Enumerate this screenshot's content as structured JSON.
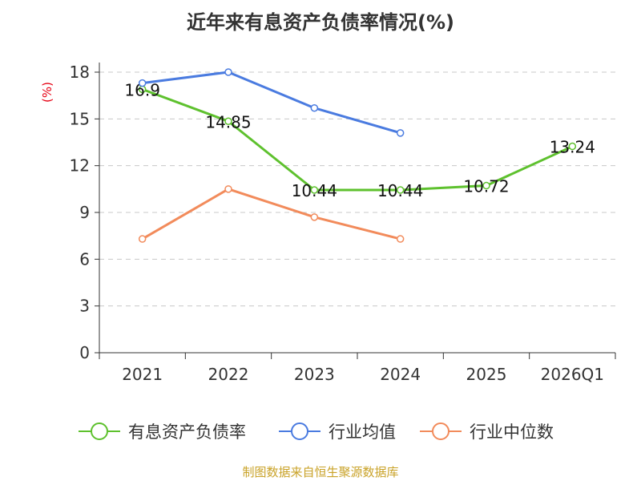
{
  "chart_data": {
    "type": "line",
    "title": "近年来有息资产负债率情况(%)",
    "ylabel": "(%)",
    "categories": [
      "2021",
      "2022",
      "2023",
      "2024",
      "2025",
      "2026Q1"
    ],
    "ylim": [
      0,
      18
    ],
    "yticks": [
      0,
      3,
      6,
      9,
      12,
      15,
      18
    ],
    "grid": true,
    "legend_position": "bottom",
    "series": [
      {
        "name": "有息资产负债率",
        "color": "#5ec12e",
        "values": [
          16.9,
          14.85,
          10.44,
          10.44,
          10.72,
          13.24
        ],
        "data_labels": [
          "16.9",
          "14.85",
          "10.44",
          "10.44",
          "10.72",
          "13.24"
        ]
      },
      {
        "name": "行业均值",
        "color": "#4a7be0",
        "values": [
          17.3,
          18.0,
          15.7,
          14.1,
          null,
          null
        ]
      },
      {
        "name": "行业中位数",
        "color": "#f28b5b",
        "values": [
          7.3,
          10.5,
          8.7,
          7.3,
          null,
          null
        ]
      }
    ],
    "source": "制图数据来自恒生聚源数据库"
  }
}
